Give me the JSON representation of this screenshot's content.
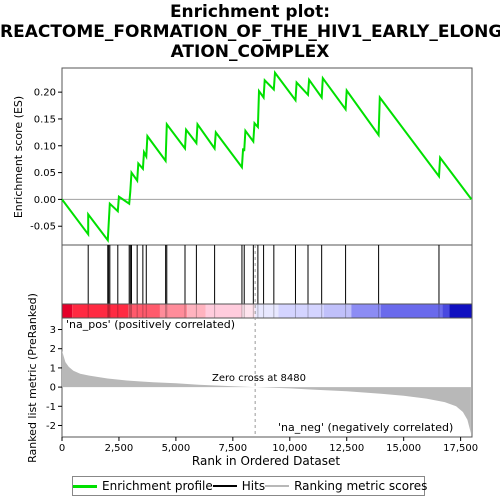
{
  "title_lines": [
    "Enrichment plot:",
    "REACTOME_FORMATION_OF_THE_HIV1_EARLY_ELONG",
    "ATION_COMPLEX"
  ],
  "colors": {
    "enrichment_line": "#00e000",
    "hits": "#000000",
    "ranking_fill": "#b8b8b8",
    "pos_label": "#cc0000",
    "neg_label": "#0000cc",
    "zero_line": "#a0a0a0"
  },
  "labels": {
    "es_ylabel": "Enrichment score (ES)",
    "rank_ylabel": "Ranked list metric (PreRanked)",
    "xlabel": "Rank in Ordered Dataset",
    "pos_corr": "'na_pos' (positively correlated)",
    "neg_corr": "'na_neg' (negatively correlated)",
    "zero_cross": "Zero cross at 8480"
  },
  "legend": {
    "enrichment": "Enrichment profile",
    "hits": "Hits",
    "ranking": "Ranking metric scores"
  },
  "chart_data": {
    "type": "line",
    "x_ticks": [
      "0",
      "2,500",
      "5,000",
      "7,500",
      "10,000",
      "12,500",
      "15,000",
      "17,500"
    ],
    "x_tick_values": [
      0,
      2500,
      5000,
      7500,
      10000,
      12500,
      15000,
      17500
    ],
    "xlim": [
      0,
      18000
    ],
    "es_yticks": [
      "-0.05",
      "0.00",
      "0.05",
      "0.10",
      "0.15",
      "0.20"
    ],
    "es_ytick_values": [
      -0.05,
      0,
      0.05,
      0.1,
      0.15,
      0.2
    ],
    "es_ylim": [
      -0.085,
      0.245
    ],
    "rank_yticks": [
      "-2",
      "-1",
      "0",
      "1",
      "2",
      "3"
    ],
    "rank_ytick_values": [
      -2,
      -1,
      0,
      1,
      2,
      3
    ],
    "rank_ylim": [
      -2.6,
      3.6
    ],
    "zero_cross": 8480,
    "hits": [
      1150,
      2010,
      2050,
      2100,
      2450,
      2950,
      3000,
      3050,
      3300,
      3550,
      3700,
      4550,
      4600,
      5400,
      5900,
      6700,
      7900,
      8000,
      8400,
      8600,
      8850,
      9300,
      10250,
      10800,
      11400,
      12450,
      13900,
      16550
    ],
    "es_profile": [
      [
        0,
        0.0
      ],
      [
        1150,
        -0.065
      ],
      [
        1150,
        -0.028
      ],
      [
        2010,
        -0.076
      ],
      [
        2050,
        -0.045
      ],
      [
        2100,
        -0.008
      ],
      [
        2450,
        -0.022
      ],
      [
        2500,
        0.005
      ],
      [
        2950,
        -0.008
      ],
      [
        3000,
        0.015
      ],
      [
        3050,
        0.05
      ],
      [
        3300,
        0.035
      ],
      [
        3350,
        0.067
      ],
      [
        3550,
        0.057
      ],
      [
        3600,
        0.088
      ],
      [
        3700,
        0.08
      ],
      [
        3750,
        0.118
      ],
      [
        4550,
        0.072
      ],
      [
        4600,
        0.14
      ],
      [
        5400,
        0.095
      ],
      [
        5450,
        0.13
      ],
      [
        5900,
        0.105
      ],
      [
        5950,
        0.14
      ],
      [
        6700,
        0.095
      ],
      [
        6750,
        0.125
      ],
      [
        7900,
        0.06
      ],
      [
        7950,
        0.095
      ],
      [
        8000,
        0.09
      ],
      [
        8050,
        0.128
      ],
      [
        8400,
        0.108
      ],
      [
        8450,
        0.142
      ],
      [
        8600,
        0.135
      ],
      [
        8650,
        0.202
      ],
      [
        8850,
        0.19
      ],
      [
        8900,
        0.222
      ],
      [
        9300,
        0.205
      ],
      [
        9350,
        0.236
      ],
      [
        10250,
        0.185
      ],
      [
        10300,
        0.218
      ],
      [
        10800,
        0.195
      ],
      [
        10850,
        0.223
      ],
      [
        11400,
        0.19
      ],
      [
        11450,
        0.226
      ],
      [
        12450,
        0.168
      ],
      [
        12500,
        0.203
      ],
      [
        13900,
        0.12
      ],
      [
        13950,
        0.19
      ],
      [
        16550,
        0.043
      ],
      [
        16600,
        0.078
      ],
      [
        17980,
        0.0
      ]
    ],
    "ranking_metric": [
      [
        0,
        1.9
      ],
      [
        150,
        1.3
      ],
      [
        300,
        1.05
      ],
      [
        500,
        0.85
      ],
      [
        800,
        0.7
      ],
      [
        1200,
        0.6
      ],
      [
        2000,
        0.45
      ],
      [
        3000,
        0.33
      ],
      [
        4000,
        0.25
      ],
      [
        5000,
        0.2
      ],
      [
        6000,
        0.12
      ],
      [
        7000,
        0.07
      ],
      [
        8480,
        0.0
      ],
      [
        10000,
        -0.07
      ],
      [
        11000,
        -0.13
      ],
      [
        12500,
        -0.22
      ],
      [
        14000,
        -0.35
      ],
      [
        15000,
        -0.45
      ],
      [
        16000,
        -0.6
      ],
      [
        16800,
        -0.78
      ],
      [
        17300,
        -1.0
      ],
      [
        17600,
        -1.3
      ],
      [
        17800,
        -1.7
      ],
      [
        17950,
        -2.4
      ]
    ],
    "heatmap_bands": [
      {
        "from": 0,
        "to": 450,
        "color": "#e4002a"
      },
      {
        "from": 450,
        "to": 2900,
        "color": "#ff2a42"
      },
      {
        "from": 2900,
        "to": 4300,
        "color": "#ff5a6c"
      },
      {
        "from": 4300,
        "to": 5500,
        "color": "#ff8c9a"
      },
      {
        "from": 5500,
        "to": 6300,
        "color": "#ffb3bf"
      },
      {
        "from": 6300,
        "to": 7900,
        "color": "#ffccdd"
      },
      {
        "from": 7900,
        "to": 8480,
        "color": "#ffe4ee"
      },
      {
        "from": 8480,
        "to": 9500,
        "color": "#e8e8ff"
      },
      {
        "from": 9500,
        "to": 11500,
        "color": "#d4d4ff"
      },
      {
        "from": 11500,
        "to": 12700,
        "color": "#c0c0fa"
      },
      {
        "from": 12700,
        "to": 14000,
        "color": "#8c8cf4"
      },
      {
        "from": 14000,
        "to": 16700,
        "color": "#6a6aec"
      },
      {
        "from": 16700,
        "to": 17000,
        "color": "#4848e0"
      },
      {
        "from": 17000,
        "to": 17980,
        "color": "#1010c0"
      }
    ]
  }
}
